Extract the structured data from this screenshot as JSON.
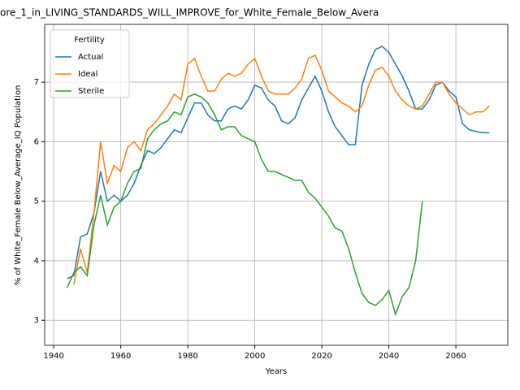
{
  "chart_data": {
    "type": "line",
    "title": "ore_1_in_LIVING_STANDARDS_WILL_IMPROVE_for_White_Female_Below_Avera",
    "xlabel": "Years",
    "ylabel": "% of White_Female Below_Average_IQ Population",
    "legend_title": "Fertility",
    "legend": "upper left",
    "grid": true,
    "x": [
      1944,
      1946,
      1948,
      1950,
      1952,
      1954,
      1956,
      1958,
      1960,
      1962,
      1964,
      1966,
      1968,
      1970,
      1972,
      1974,
      1976,
      1978,
      1980,
      1982,
      1984,
      1986,
      1988,
      1990,
      1992,
      1994,
      1996,
      1998,
      2000,
      2002,
      2004,
      2006,
      2008,
      2010,
      2012,
      2014,
      2016,
      2018,
      2020,
      2022,
      2024,
      2026,
      2028,
      2030,
      2032,
      2034,
      2036,
      2038,
      2040,
      2042,
      2044,
      2046,
      2048,
      2050,
      2052,
      2054,
      2056,
      2058,
      2060,
      2062,
      2064,
      2066,
      2068,
      2070
    ],
    "series": [
      {
        "name": "Actual",
        "color": "#1f77b4",
        "values": [
          3.7,
          3.75,
          4.4,
          4.45,
          4.8,
          5.5,
          5.0,
          5.1,
          5.0,
          5.1,
          5.3,
          5.6,
          5.85,
          5.8,
          5.9,
          6.05,
          6.2,
          6.15,
          6.4,
          6.65,
          6.65,
          6.45,
          6.35,
          6.35,
          6.55,
          6.6,
          6.55,
          6.7,
          6.95,
          6.9,
          6.7,
          6.6,
          6.35,
          6.3,
          6.4,
          6.7,
          6.9,
          7.1,
          6.85,
          6.5,
          6.25,
          6.1,
          5.95,
          5.95,
          6.95,
          7.3,
          7.55,
          7.6,
          7.5,
          7.3,
          7.1,
          6.85,
          6.55,
          6.55,
          6.7,
          6.95,
          7.0,
          6.85,
          6.75,
          6.3,
          6.2,
          6.17,
          6.15,
          6.15
        ]
      },
      {
        "name": "Ideal",
        "color": "#ff7f0e",
        "values": [
          null,
          3.6,
          4.2,
          3.8,
          4.8,
          6.0,
          5.3,
          5.6,
          5.5,
          5.9,
          6.0,
          5.85,
          6.2,
          6.3,
          6.45,
          6.6,
          6.8,
          6.7,
          7.3,
          7.4,
          7.1,
          6.85,
          6.85,
          7.05,
          7.15,
          7.1,
          7.15,
          7.3,
          7.4,
          7.1,
          6.85,
          6.8,
          6.8,
          6.8,
          6.9,
          7.05,
          7.4,
          7.45,
          7.2,
          6.85,
          6.75,
          6.65,
          6.6,
          6.5,
          6.6,
          6.95,
          7.2,
          7.25,
          7.1,
          6.85,
          6.7,
          6.6,
          6.55,
          6.6,
          6.8,
          7.0,
          7.0,
          6.8,
          6.65,
          6.55,
          6.45,
          6.5,
          6.5,
          6.6
        ]
      },
      {
        "name": "Sterile",
        "color": "#2ca02c",
        "values": [
          3.55,
          3.8,
          3.9,
          3.75,
          4.6,
          5.1,
          4.6,
          4.9,
          5.0,
          5.3,
          5.5,
          5.55,
          6.05,
          6.2,
          6.3,
          6.35,
          6.5,
          6.45,
          6.75,
          6.8,
          6.75,
          6.65,
          6.45,
          6.2,
          6.25,
          6.25,
          6.1,
          6.05,
          6.0,
          5.7,
          5.5,
          5.5,
          5.45,
          5.4,
          5.35,
          5.35,
          5.15,
          5.05,
          4.9,
          4.75,
          4.55,
          4.5,
          4.2,
          3.8,
          3.45,
          3.3,
          3.25,
          3.35,
          3.5,
          3.1,
          3.4,
          3.55,
          4.0,
          5.0,
          null,
          null,
          null,
          null,
          null,
          null,
          null,
          null,
          null,
          null
        ]
      }
    ],
    "xlim": [
      1937.3,
      2075.5
    ],
    "ylim": [
      2.58,
      7.97
    ],
    "xticks": [
      1940,
      1960,
      1980,
      2000,
      2020,
      2040,
      2060
    ],
    "yticks": [
      3,
      4,
      5,
      6,
      7
    ]
  }
}
